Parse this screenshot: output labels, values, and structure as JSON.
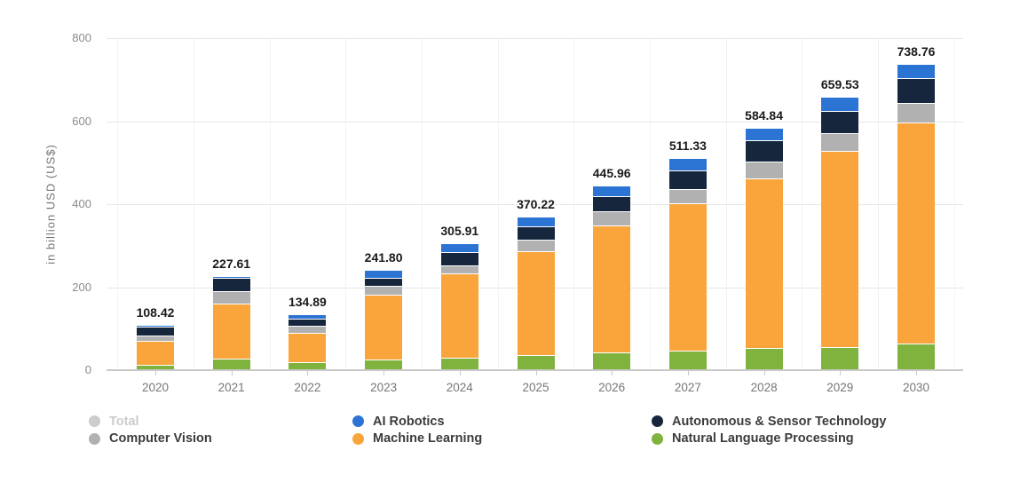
{
  "chart_data": {
    "type": "bar",
    "stacked": true,
    "categories": [
      "2020",
      "2021",
      "2022",
      "2023",
      "2024",
      "2025",
      "2026",
      "2027",
      "2028",
      "2029",
      "2030"
    ],
    "series": [
      {
        "name": "Natural Language Processing",
        "color": "#7fb33e",
        "values": [
          12.8,
          27.8,
          19.29,
          25.7,
          30.01,
          36.42,
          42.16,
          47.03,
          52.74,
          56.03,
          64.26
        ]
      },
      {
        "name": "Machine Learning",
        "color": "#f9a53c",
        "values": [
          57.9,
          133.2,
          70.7,
          156.1,
          203.1,
          250.4,
          307.5,
          355.1,
          410.2,
          473.0,
          532.0
        ]
      },
      {
        "name": "Computer Vision",
        "color": "#b1b1b1",
        "values": [
          12.8,
          30.0,
          17.1,
          21.4,
          19.3,
          27.8,
          34.2,
          34.2,
          40.6,
          42.8,
          47.1
        ]
      },
      {
        "name": "Autonomous & Sensor Technology",
        "color": "#16263c",
        "values": [
          21.5,
          32.1,
          17.1,
          19.3,
          32.1,
          32.1,
          36.4,
          45.0,
          51.3,
          53.5,
          59.9
        ]
      },
      {
        "name": "AI Robotics",
        "color": "#2c74d4",
        "values": [
          3.42,
          4.51,
          10.7,
          19.3,
          21.4,
          23.5,
          25.7,
          30.0,
          30.0,
          34.2,
          35.5
        ]
      }
    ],
    "totals": [
      108.42,
      227.61,
      134.89,
      241.8,
      305.91,
      370.22,
      445.96,
      511.33,
      584.84,
      659.53,
      738.76
    ],
    "total_labels": [
      "108.42",
      "227.61",
      "134.89",
      "241.80",
      "305.91",
      "370.22",
      "445.96",
      "511.33",
      "584.84",
      "659.53",
      "738.76"
    ],
    "ylabel": "in billion USD (US$)",
    "ylim": [
      0,
      800
    ],
    "yticks": [
      0,
      200,
      400,
      600,
      800
    ],
    "grid": true,
    "legend_position": "bottom"
  },
  "legend": {
    "items": [
      {
        "label": "Total",
        "color": "#cccccc",
        "disabled": true
      },
      {
        "label": "AI Robotics",
        "color": "#2c74d4",
        "disabled": false
      },
      {
        "label": "Autonomous & Sensor Technology",
        "color": "#16263c",
        "disabled": false
      },
      {
        "label": "Computer Vision",
        "color": "#b1b1b1",
        "disabled": false
      },
      {
        "label": "Machine Learning",
        "color": "#f9a53c",
        "disabled": false
      },
      {
        "label": "Natural Language Processing",
        "color": "#7fb33e",
        "disabled": false
      }
    ]
  }
}
